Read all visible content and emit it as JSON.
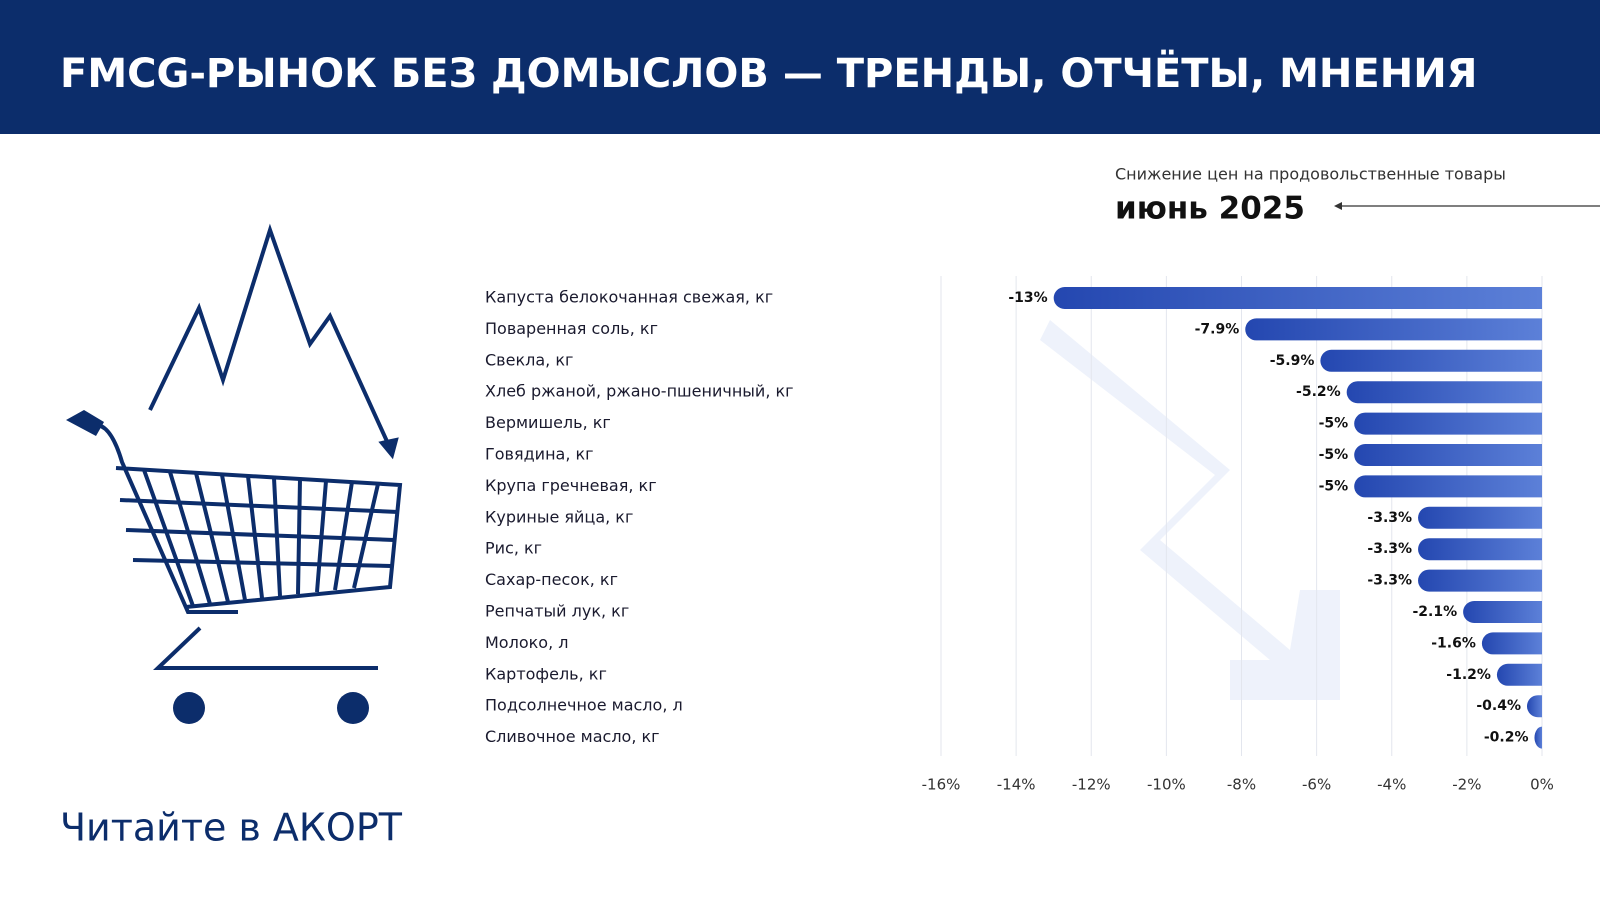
{
  "header": {
    "title": "FMCG-РЫНОК БЕЗ ДОМЫСЛОВ — ТРЕНДЫ, ОТЧЁТЫ, МНЕНИЯ"
  },
  "footer": {
    "text": "Читайте в АКОРТ"
  },
  "chart_data": {
    "type": "barh",
    "subtitle": "Снижение цен на продовольственные товары",
    "title": "июнь 2025",
    "categories": [
      "Капуста белокочанная свежая, кг",
      "Поваренная соль, кг",
      "Свекла, кг",
      "Хлеб ржаной, ржано-пшеничный, кг",
      "Вермишель, кг",
      "Говядина, кг",
      "Крупа гречневая, кг",
      "Куриные яйца, кг",
      "Рис, кг",
      "Сахар-песок, кг",
      "Репчатый лук, кг",
      "Молоко, л",
      "Картофель, кг",
      "Подсолнечное масло, л",
      "Сливочное масло, кг"
    ],
    "values": [
      -13,
      -7.9,
      -5.9,
      -5.2,
      -5,
      -5,
      -5,
      -3.3,
      -3.3,
      -3.3,
      -2.1,
      -1.6,
      -1.2,
      -0.4,
      -0.2
    ],
    "value_labels": [
      "-13%",
      "-7.9%",
      "-5.9%",
      "-5.2%",
      "-5%",
      "-5%",
      "-5%",
      "-3.3%",
      "-3.3%",
      "-3.3%",
      "-2.1%",
      "-1.6%",
      "-1.2%",
      "-0.4%",
      "-0.2%"
    ],
    "color": "#2f52b8",
    "xlim": [
      -16,
      0
    ],
    "xticks": [
      {
        "value": -16,
        "label": "-16%"
      },
      {
        "value": -14,
        "label": "-14%"
      },
      {
        "value": -12,
        "label": "-12%"
      },
      {
        "value": -10,
        "label": "-10%"
      },
      {
        "value": -8,
        "label": "-8%"
      },
      {
        "value": -6,
        "label": "-6%"
      },
      {
        "value": -4,
        "label": "-4%"
      },
      {
        "value": -2,
        "label": "-2%"
      },
      {
        "value": 0,
        "label": "0%"
      }
    ],
    "grid": true
  }
}
